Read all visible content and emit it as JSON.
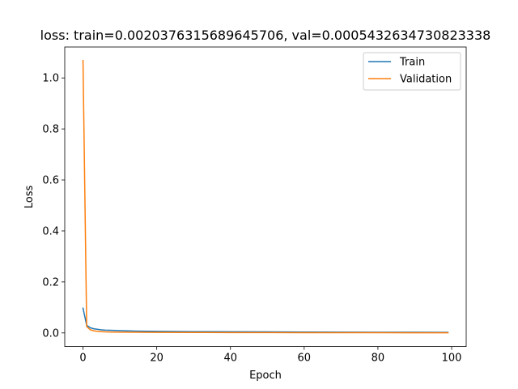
{
  "chart_data": {
    "type": "line",
    "title": "loss: train=0.0020376315689645706, val=0.0005432634730823338",
    "xlabel": "Epoch",
    "ylabel": "Loss",
    "xlim": [
      -4.95,
      103.95
    ],
    "ylim": [
      -0.0534,
      1.1214
    ],
    "xticks": [
      0,
      20,
      40,
      60,
      80,
      100
    ],
    "yticks": [
      0.0,
      0.2,
      0.4,
      0.6,
      0.8,
      1.0
    ],
    "xtick_labels": [
      "0",
      "20",
      "40",
      "60",
      "80",
      "100"
    ],
    "ytick_labels": [
      "0.0",
      "0.2",
      "0.4",
      "0.6",
      "0.8",
      "1.0"
    ],
    "grid": false,
    "legend_position": "top-right",
    "series": [
      {
        "name": "Train",
        "color": "#1f77b4",
        "x": [
          0,
          1,
          2,
          3,
          4,
          5,
          6,
          8,
          10,
          15,
          20,
          30,
          40,
          50,
          60,
          70,
          80,
          90,
          99
        ],
        "values": [
          0.097,
          0.03,
          0.02,
          0.016,
          0.014,
          0.012,
          0.011,
          0.01,
          0.009,
          0.007,
          0.006,
          0.005,
          0.0045,
          0.004,
          0.0035,
          0.003,
          0.0027,
          0.0024,
          0.002
        ]
      },
      {
        "name": "Validation",
        "color": "#ff7f0e",
        "x": [
          0,
          1,
          2,
          3,
          4,
          5,
          6,
          8,
          10,
          15,
          20,
          30,
          40,
          50,
          60,
          70,
          80,
          90,
          99
        ],
        "values": [
          1.068,
          0.025,
          0.012,
          0.008,
          0.006,
          0.005,
          0.004,
          0.0035,
          0.003,
          0.0025,
          0.002,
          0.0018,
          0.0015,
          0.0013,
          0.0011,
          0.0009,
          0.0008,
          0.0007,
          0.0005
        ]
      }
    ]
  }
}
